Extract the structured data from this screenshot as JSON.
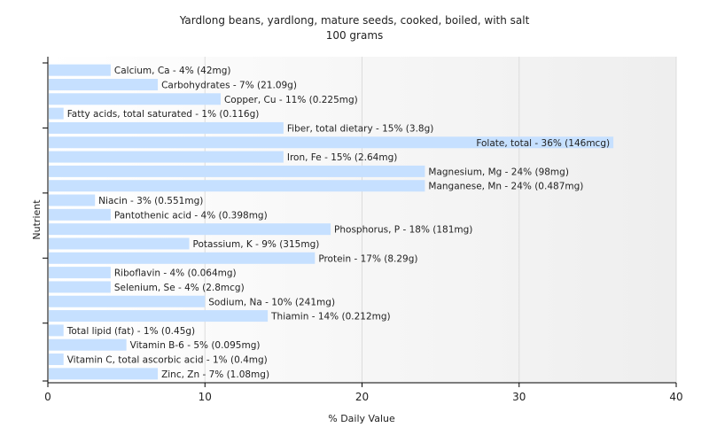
{
  "chart_data": {
    "type": "bar",
    "orientation": "horizontal",
    "title": "Yardlong beans, yardlong, mature seeds, cooked, boiled, with salt",
    "subtitle": "100 grams",
    "xlabel": "% Daily Value",
    "ylabel": "Nutrient",
    "xlim": [
      0,
      40
    ],
    "xticks": [
      "0",
      "10",
      "20",
      "30",
      "40"
    ],
    "grid": true,
    "bar_color": "#c6e0ff",
    "categories": [
      "Calcium, Ca",
      "Carbohydrates",
      "Copper, Cu",
      "Fatty acids, total saturated",
      "Fiber, total dietary",
      "Folate, total",
      "Iron, Fe",
      "Magnesium, Mg",
      "Manganese, Mn",
      "Niacin",
      "Pantothenic acid",
      "Phosphorus, P",
      "Potassium, K",
      "Protein",
      "Riboflavin",
      "Selenium, Se",
      "Sodium, Na",
      "Thiamin",
      "Total lipid (fat)",
      "Vitamin B-6",
      "Vitamin C, total ascorbic acid",
      "Zinc, Zn"
    ],
    "values": [
      4,
      7,
      11,
      1,
      15,
      36,
      15,
      24,
      24,
      3,
      4,
      18,
      9,
      17,
      4,
      4,
      10,
      14,
      1,
      5,
      1,
      7
    ],
    "labels": [
      "Calcium, Ca - 4% (42mg)",
      "Carbohydrates - 7% (21.09g)",
      "Copper, Cu - 11% (0.225mg)",
      "Fatty acids, total saturated - 1% (0.116g)",
      "Fiber, total dietary - 15% (3.8g)",
      "Folate, total - 36% (146mcg)",
      "Iron, Fe - 15% (2.64mg)",
      "Magnesium, Mg - 24% (98mg)",
      "Manganese, Mn - 24% (0.487mg)",
      "Niacin - 3% (0.551mg)",
      "Pantothenic acid - 4% (0.398mg)",
      "Phosphorus, P - 18% (181mg)",
      "Potassium, K - 9% (315mg)",
      "Protein - 17% (8.29g)",
      "Riboflavin - 4% (0.064mg)",
      "Selenium, Se - 4% (2.8mcg)",
      "Sodium, Na - 10% (241mg)",
      "Thiamin - 14% (0.212mg)",
      "Total lipid (fat) - 1% (0.45g)",
      "Vitamin B-6 - 5% (0.095mg)",
      "Vitamin C, total ascorbic acid - 1% (0.4mg)",
      "Zinc, Zn - 7% (1.08mg)"
    ]
  }
}
